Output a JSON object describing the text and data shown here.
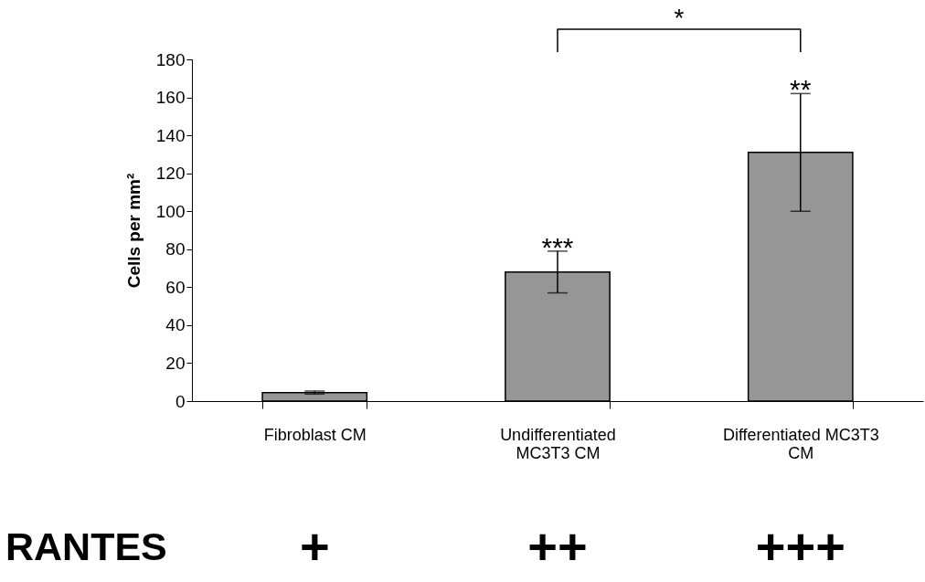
{
  "chart_data": {
    "type": "bar",
    "ylabel": "Cells per mm²",
    "categories": [
      "Fibroblast CM",
      "Undifferentiated MC3T3 CM",
      "Differentiated MC3T3 CM"
    ],
    "values": [
      4.5,
      68,
      131
    ],
    "errors": [
      0.8,
      11,
      31
    ],
    "color": "#969696",
    "ylim": [
      0,
      180
    ],
    "yticks": [
      0,
      20,
      40,
      60,
      80,
      100,
      120,
      140,
      160,
      180
    ],
    "annotations": [
      "***",
      "**",
      "*",
      "RANTES",
      "+",
      "++",
      "+++"
    ]
  }
}
